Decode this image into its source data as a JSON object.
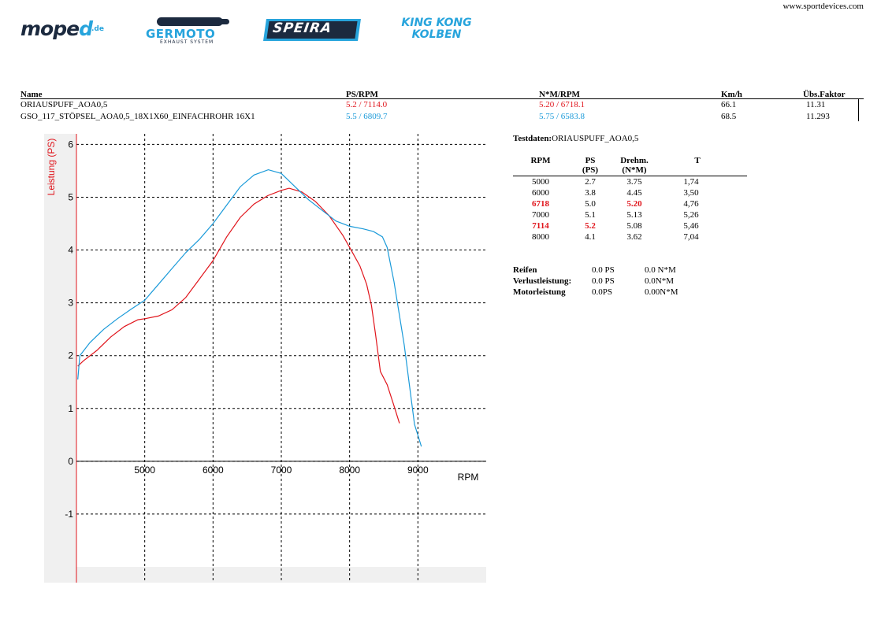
{
  "site_url": "www.sportdevices.com",
  "logos": {
    "moped": {
      "prefix": "mope",
      "accent": "d",
      "suffix": ".de"
    },
    "germoto": {
      "name": "GERMOTO",
      "sub": "EXHAUST SYSTEM"
    },
    "speira": {
      "name": "SPEIRA"
    },
    "kingkong": {
      "line1": "KING KONG",
      "line2": "KOLBEN"
    }
  },
  "runs_table": {
    "headers": {
      "name": "Name",
      "ps_rpm": "PS/RPM",
      "nm_rpm": "N*M/RPM",
      "kmh": "Km/h",
      "ratio": "Übs.Faktor"
    },
    "rows": [
      {
        "name": "ORIAUSPUFF_AOA0,5",
        "ps_rpm": "5.2 / 7114.0",
        "nm_rpm": "5.20 / 6718.1",
        "kmh": "66.1",
        "ratio": "11.31"
      },
      {
        "name": "GSO_117_STÖPSEL_AOA0,5_18X1X60_EINFACHROHR 16X1",
        "ps_rpm": "5.5 / 6809.7",
        "nm_rpm": "5.75 / 6583.8",
        "kmh": "68.5",
        "ratio": "11.293"
      }
    ]
  },
  "colors": {
    "run1": "#e0141b",
    "run2": "#1a9ad9",
    "axis_y": "#e0141b",
    "grid": "#000000"
  },
  "chart_data": {
    "type": "line",
    "title": "",
    "xlabel": "RPM",
    "ylabel": "Leistung (PS)",
    "xlim": [
      4000,
      10000
    ],
    "ylim": [
      -2,
      6.2
    ],
    "x_ticks": [
      5000,
      6000,
      7000,
      8000,
      9000
    ],
    "y_ticks": [
      -1,
      0,
      1,
      2,
      3,
      4,
      5,
      6
    ],
    "grid": true,
    "series": [
      {
        "name": "ORIAUSPUFF_AOA0,5",
        "color": "#e0141b",
        "x": [
          4020,
          4100,
          4300,
          4500,
          4700,
          4900,
          5000,
          5200,
          5400,
          5600,
          5800,
          6000,
          6200,
          6400,
          6600,
          6800,
          7000,
          7114,
          7300,
          7500,
          7700,
          7900,
          8000,
          8150,
          8250,
          8320,
          8380,
          8450,
          8550,
          8650,
          8730
        ],
        "y": [
          1.8,
          1.9,
          2.1,
          2.35,
          2.55,
          2.68,
          2.7,
          2.75,
          2.87,
          3.1,
          3.45,
          3.8,
          4.25,
          4.62,
          4.87,
          5.03,
          5.13,
          5.17,
          5.1,
          4.92,
          4.65,
          4.28,
          4.05,
          3.7,
          3.35,
          2.95,
          2.4,
          1.7,
          1.45,
          1.05,
          0.72
        ]
      },
      {
        "name": "GSO_117_STÖPSEL_AOA0,5_18X1X60_EINFACHROHR 16X1",
        "color": "#1a9ad9",
        "x": [
          4020,
          4050,
          4200,
          4400,
          4600,
          4800,
          5000,
          5200,
          5400,
          5600,
          5800,
          6000,
          6200,
          6400,
          6600,
          6810,
          7000,
          7200,
          7400,
          7600,
          7800,
          8000,
          8200,
          8350,
          8480,
          8550,
          8650,
          8800,
          8950,
          9050
        ],
        "y": [
          1.55,
          2.0,
          2.25,
          2.5,
          2.7,
          2.88,
          3.05,
          3.35,
          3.65,
          3.95,
          4.2,
          4.5,
          4.85,
          5.2,
          5.42,
          5.52,
          5.45,
          5.2,
          4.95,
          4.75,
          4.55,
          4.45,
          4.4,
          4.35,
          4.25,
          4.05,
          3.4,
          2.2,
          0.7,
          0.28
        ]
      }
    ]
  },
  "test_data": {
    "title_label": "Testdaten:",
    "title_value": "ORIAUSPUFF_AOA0,5",
    "headers": [
      {
        "l1": "RPM",
        "l2": ""
      },
      {
        "l1": "PS",
        "l2": "(PS)"
      },
      {
        "l1": "Drehm.",
        "l2": "(N*M)"
      },
      {
        "l1": "T",
        "l2": ""
      }
    ],
    "rows": [
      {
        "rpm": "5000",
        "ps": "2.7",
        "nm": "3.75",
        "t": "1,74",
        "hl": []
      },
      {
        "rpm": "6000",
        "ps": "3.8",
        "nm": "4.45",
        "t": "3,50",
        "hl": []
      },
      {
        "rpm": "6718",
        "ps": "5.0",
        "nm": "5.20",
        "t": "4,76",
        "hl": [
          "rpm",
          "nm"
        ]
      },
      {
        "rpm": "7000",
        "ps": "5.1",
        "nm": "5.13",
        "t": "5,26",
        "hl": []
      },
      {
        "rpm": "7114",
        "ps": "5.2",
        "nm": "5.08",
        "t": "5,46",
        "hl": [
          "rpm",
          "ps"
        ]
      },
      {
        "rpm": "8000",
        "ps": "4.1",
        "nm": "3.62",
        "t": "7,04",
        "hl": []
      }
    ]
  },
  "losses": [
    {
      "label": "Reifen",
      "v1": "0.0 PS",
      "v2": "0.0 N*M"
    },
    {
      "label": "Verlustleistung:",
      "v1": "0.0 PS",
      "v2": "0.0N*M"
    },
    {
      "label": "Motorleistung",
      "v1": "0.0PS",
      "v2": "0.00N*M"
    }
  ]
}
